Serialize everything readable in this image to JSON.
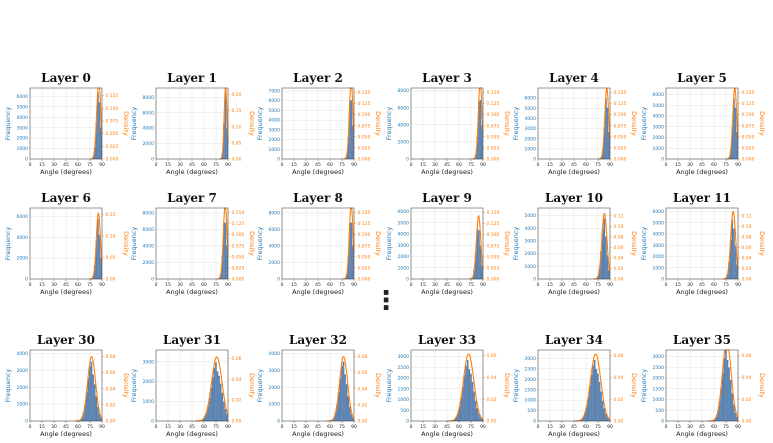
{
  "colors": {
    "frequency": "#1f77b4",
    "density": "#ff7f0e",
    "bar": "#5b87b8",
    "grid": "#d9d9d9"
  },
  "separator": "⋮",
  "chart_data": [
    {
      "title": "Layer 0",
      "xlabel": "Angle (degrees)",
      "y1label": "Frequency",
      "y2label": "Density",
      "xticks": [
        "0",
        "15",
        "30",
        "45",
        "60",
        "75",
        "90"
      ],
      "xlim": [
        0,
        90
      ],
      "y1ticks": [
        "0",
        "1000",
        "2000",
        "3000",
        "4000",
        "5000",
        "6000"
      ],
      "y1lim": [
        0,
        6800
      ],
      "y2ticks": [
        "0.000",
        "0.025",
        "0.050",
        "0.075",
        "0.100",
        "0.125"
      ],
      "y2lim": [
        0,
        0.14
      ],
      "mu": 86,
      "sigma": 2.6
    },
    {
      "title": "Layer 1",
      "xlabel": "Angle (degrees)",
      "y1label": "Frequency",
      "y2label": "Density",
      "xticks": [
        "0",
        "15",
        "30",
        "45",
        "60",
        "75",
        "90"
      ],
      "xlim": [
        0,
        90
      ],
      "y1ticks": [
        "0",
        "2000",
        "4000",
        "6000",
        "8000"
      ],
      "y1lim": [
        0,
        9200
      ],
      "y2ticks": [
        "0.00",
        "0.05",
        "0.10",
        "0.15",
        "0.20"
      ],
      "y2lim": [
        0,
        0.22
      ],
      "mu": 87,
      "sigma": 1.8
    },
    {
      "title": "Layer 2",
      "xlabel": "Angle (degrees)",
      "y1label": "Frequency",
      "y2label": "Density",
      "xticks": [
        "0",
        "15",
        "30",
        "45",
        "60",
        "75",
        "90"
      ],
      "xlim": [
        0,
        90
      ],
      "y1ticks": [
        "0",
        "1000",
        "2000",
        "3000",
        "4000",
        "5000",
        "6000",
        "7000"
      ],
      "y1lim": [
        0,
        7300
      ],
      "y2ticks": [
        "0.000",
        "0.025",
        "0.050",
        "0.075",
        "0.100",
        "0.125",
        "0.150"
      ],
      "y2lim": [
        0,
        0.16
      ],
      "mu": 86.5,
      "sigma": 2.3
    },
    {
      "title": "Layer 3",
      "xlabel": "Angle (degrees)",
      "y1label": "Frequency",
      "y2label": "Density",
      "xticks": [
        "0",
        "15",
        "30",
        "45",
        "60",
        "75",
        "90"
      ],
      "xlim": [
        0,
        90
      ],
      "y1ticks": [
        "0",
        "2000",
        "4000",
        "6000",
        "8000"
      ],
      "y1lim": [
        0,
        8300
      ],
      "y2ticks": [
        "0.000",
        "0.025",
        "0.050",
        "0.075",
        "0.100",
        "0.125",
        "0.150"
      ],
      "y2lim": [
        0,
        0.16
      ],
      "mu": 86.5,
      "sigma": 2.3
    },
    {
      "title": "Layer 4",
      "xlabel": "Angle (degrees)",
      "y1label": "Frequency",
      "y2label": "Density",
      "xticks": [
        "0",
        "15",
        "30",
        "45",
        "60",
        "75",
        "90"
      ],
      "xlim": [
        0,
        90
      ],
      "y1ticks": [
        "0",
        "1000",
        "2000",
        "3000",
        "4000",
        "5000",
        "6000"
      ],
      "y1lim": [
        0,
        7000
      ],
      "y2ticks": [
        "0.000",
        "0.025",
        "0.050",
        "0.075",
        "0.100",
        "0.125",
        "0.150"
      ],
      "y2lim": [
        0,
        0.16
      ],
      "mu": 86,
      "sigma": 2.5
    },
    {
      "title": "Layer 5",
      "xlabel": "Angle (degrees)",
      "y1label": "Frequency",
      "y2label": "Density",
      "xticks": [
        "0",
        "15",
        "30",
        "45",
        "60",
        "75",
        "90"
      ],
      "xlim": [
        0,
        90
      ],
      "y1ticks": [
        "0",
        "1000",
        "2000",
        "3000",
        "4000",
        "5000",
        "6000"
      ],
      "y1lim": [
        0,
        6600
      ],
      "y2ticks": [
        "0.000",
        "0.025",
        "0.050",
        "0.075",
        "0.100",
        "0.125",
        "0.150"
      ],
      "y2lim": [
        0,
        0.16
      ],
      "mu": 86,
      "sigma": 2.5
    },
    {
      "title": "Layer 6",
      "xlabel": "Angle (degrees)",
      "y1label": "Frequency",
      "y2label": "Density",
      "xticks": [
        "0",
        "15",
        "30",
        "45",
        "60",
        "75",
        "90"
      ],
      "xlim": [
        0,
        90
      ],
      "y1ticks": [
        "0",
        "2000",
        "4000",
        "6000"
      ],
      "y1lim": [
        0,
        6800
      ],
      "y2ticks": [
        "0.00",
        "0.05",
        "0.10",
        "0.15"
      ],
      "y2lim": [
        0,
        0.165
      ],
      "mu": 85.5,
      "sigma": 2.6
    },
    {
      "title": "Layer 7",
      "xlabel": "Angle (degrees)",
      "y1label": "Frequency",
      "y2label": "Density",
      "xticks": [
        "0",
        "15",
        "30",
        "45",
        "60",
        "75",
        "90"
      ],
      "xlim": [
        0,
        90
      ],
      "y1ticks": [
        "0",
        "2000",
        "4000",
        "6000",
        "8000"
      ],
      "y1lim": [
        0,
        8600
      ],
      "y2ticks": [
        "0.000",
        "0.025",
        "0.050",
        "0.075",
        "0.100",
        "0.125",
        "0.150"
      ],
      "y2lim": [
        0,
        0.16
      ],
      "mu": 86.5,
      "sigma": 2.4
    },
    {
      "title": "Layer 8",
      "xlabel": "Angle (degrees)",
      "y1label": "Frequency",
      "y2label": "Density",
      "xticks": [
        "0",
        "15",
        "30",
        "45",
        "60",
        "75",
        "90"
      ],
      "xlim": [
        0,
        90
      ],
      "y1ticks": [
        "0",
        "2000",
        "4000",
        "6000",
        "8000"
      ],
      "y1lim": [
        0,
        8600
      ],
      "y2ticks": [
        "0.000",
        "0.025",
        "0.050",
        "0.075",
        "0.100",
        "0.125",
        "0.150"
      ],
      "y2lim": [
        0,
        0.16
      ],
      "mu": 86.5,
      "sigma": 2.4
    },
    {
      "title": "Layer 9",
      "xlabel": "Angle (degrees)",
      "y1label": "Frequency",
      "y2label": "Density",
      "xticks": [
        "0",
        "15",
        "30",
        "45",
        "60",
        "75",
        "90"
      ],
      "xlim": [
        0,
        90
      ],
      "y1ticks": [
        "0",
        "1000",
        "2000",
        "3000",
        "4000",
        "5000",
        "6000"
      ],
      "y1lim": [
        0,
        6300
      ],
      "y2ticks": [
        "0.000",
        "0.025",
        "0.050",
        "0.075",
        "0.100",
        "0.125",
        "0.150"
      ],
      "y2lim": [
        0,
        0.16
      ],
      "mu": 84.5,
      "sigma": 2.8
    },
    {
      "title": "Layer 10",
      "xlabel": "Angle (degrees)",
      "y1label": "Frequency",
      "y2label": "Density",
      "xticks": [
        "0",
        "15",
        "30",
        "45",
        "60",
        "75",
        "90"
      ],
      "xlim": [
        0,
        90
      ],
      "y1ticks": [
        "0",
        "1000",
        "2000",
        "3000",
        "4000",
        "5000"
      ],
      "y1lim": [
        0,
        5600
      ],
      "y2ticks": [
        "0.00",
        "0.02",
        "0.04",
        "0.06",
        "0.08",
        "0.10",
        "0.12"
      ],
      "y2lim": [
        0,
        0.135
      ],
      "mu": 83,
      "sigma": 3.2
    },
    {
      "title": "Layer 11",
      "xlabel": "Angle (degrees)",
      "y1label": "Frequency",
      "y2label": "Density",
      "xticks": [
        "0",
        "15",
        "30",
        "45",
        "60",
        "75",
        "90"
      ],
      "xlim": [
        0,
        90
      ],
      "y1ticks": [
        "0",
        "1000",
        "2000",
        "3000",
        "4000",
        "5000",
        "6000"
      ],
      "y1lim": [
        0,
        6300
      ],
      "y2ticks": [
        "0.00",
        "0.02",
        "0.04",
        "0.06",
        "0.08",
        "0.10",
        "0.12"
      ],
      "y2lim": [
        0,
        0.135
      ],
      "mu": 84,
      "sigma": 3.1
    },
    {
      "title": "Layer 30",
      "xlabel": "Angle (degrees)",
      "y1label": "Frequency",
      "y2label": "Density",
      "xticks": [
        "0",
        "15",
        "30",
        "45",
        "60",
        "75",
        "90"
      ],
      "xlim": [
        0,
        90
      ],
      "y1ticks": [
        "0",
        "1000",
        "2000",
        "3000",
        "4000"
      ],
      "y1lim": [
        0,
        4200
      ],
      "y2ticks": [
        "0.00",
        "0.02",
        "0.04",
        "0.06",
        "0.08"
      ],
      "y2lim": [
        0,
        0.088
      ],
      "mu": 77,
      "sigma": 5
    },
    {
      "title": "Layer 31",
      "xlabel": "Angle (degrees)",
      "y1label": "Frequency",
      "y2label": "Density",
      "xticks": [
        "0",
        "15",
        "30",
        "45",
        "60",
        "75",
        "90"
      ],
      "xlim": [
        0,
        90
      ],
      "y1ticks": [
        "0",
        "1000",
        "2000",
        "3000"
      ],
      "y1lim": [
        0,
        3600
      ],
      "y2ticks": [
        "0.00",
        "0.02",
        "0.04",
        "0.06"
      ],
      "y2lim": [
        0,
        0.068
      ],
      "mu": 76,
      "sigma": 6.5
    },
    {
      "title": "Layer 32",
      "xlabel": "Angle (degrees)",
      "y1label": "Frequency",
      "y2label": "Density",
      "xticks": [
        "0",
        "15",
        "30",
        "45",
        "60",
        "75",
        "90"
      ],
      "xlim": [
        0,
        90
      ],
      "y1ticks": [
        "0",
        "1000",
        "2000",
        "3000",
        "4000"
      ],
      "y1lim": [
        0,
        4200
      ],
      "y2ticks": [
        "0.00",
        "0.02",
        "0.04",
        "0.06",
        "0.08"
      ],
      "y2lim": [
        0,
        0.088
      ],
      "mu": 77,
      "sigma": 5
    },
    {
      "title": "Layer 33",
      "xlabel": "Angle (degrees)",
      "y1label": "Frequency",
      "y2label": "Density",
      "xticks": [
        "0",
        "15",
        "30",
        "45",
        "60",
        "75",
        "90"
      ],
      "xlim": [
        0,
        90
      ],
      "y1ticks": [
        "0",
        "500",
        "1000",
        "1500",
        "2000",
        "2500",
        "3000"
      ],
      "y1lim": [
        0,
        3300
      ],
      "y2ticks": [
        "0.00",
        "0.02",
        "0.04",
        "0.06"
      ],
      "y2lim": [
        0,
        0.065
      ],
      "mu": 72,
      "sigma": 6.5
    },
    {
      "title": "Layer 34",
      "xlabel": "Angle (degrees)",
      "y1label": "Frequency",
      "y2label": "Density",
      "xticks": [
        "0",
        "15",
        "30",
        "45",
        "60",
        "75",
        "90"
      ],
      "xlim": [
        0,
        90
      ],
      "y1ticks": [
        "0",
        "500",
        "1000",
        "1500",
        "2000",
        "2500",
        "3000"
      ],
      "y1lim": [
        0,
        3400
      ],
      "y2ticks": [
        "0.00",
        "0.02",
        "0.04",
        "0.06"
      ],
      "y2lim": [
        0,
        0.065
      ],
      "mu": 72,
      "sigma": 6.5
    },
    {
      "title": "Layer 35",
      "xlabel": "Angle (degrees)",
      "y1label": "Frequency",
      "y2label": "Density",
      "xticks": [
        "0",
        "15",
        "30",
        "45",
        "60",
        "75",
        "90"
      ],
      "xlim": [
        0,
        90
      ],
      "y1ticks": [
        "0",
        "500",
        "1000",
        "1500",
        "2000",
        "2500",
        "3000"
      ],
      "y1lim": [
        0,
        3300
      ],
      "y2ticks": [
        "0.00",
        "0.02",
        "0.04",
        "0.06"
      ],
      "y2lim": [
        0,
        0.065
      ],
      "mu": 76,
      "sigma": 5.5
    }
  ]
}
